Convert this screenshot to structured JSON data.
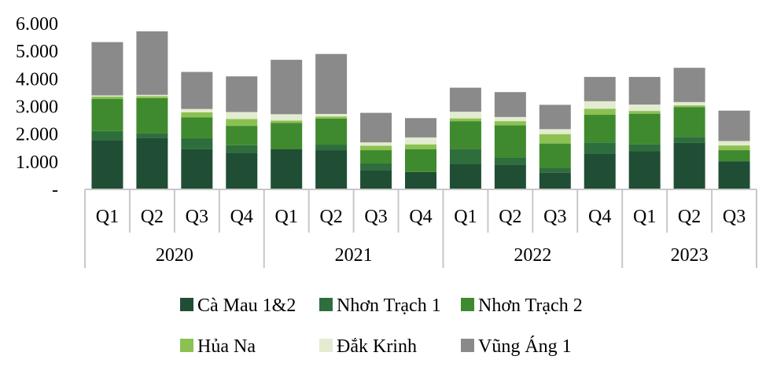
{
  "chart_data": {
    "type": "bar",
    "stacked": true,
    "title": "",
    "xlabel": "",
    "ylabel": "",
    "ylim": [
      0,
      6000
    ],
    "y_ticks": [
      0,
      1000,
      2000,
      3000,
      4000,
      5000,
      6000
    ],
    "y_tick_labels": [
      "-",
      "1.000",
      "2.000",
      "3.000",
      "4.000",
      "5.000",
      "6.000"
    ],
    "grid": false,
    "legend_position": "bottom",
    "categories": [
      "Q1",
      "Q2",
      "Q3",
      "Q4",
      "Q1",
      "Q2",
      "Q3",
      "Q4",
      "Q1",
      "Q2",
      "Q3",
      "Q4",
      "Q1",
      "Q2",
      "Q3"
    ],
    "year_groups": [
      {
        "label": "2020",
        "count": 4
      },
      {
        "label": "2021",
        "count": 4
      },
      {
        "label": "2022",
        "count": 4
      },
      {
        "label": "2023",
        "count": 3
      }
    ],
    "series": [
      {
        "name": "Cà Mau 1&2",
        "color": "#1f4e35",
        "values": [
          1780,
          1860,
          1460,
          1320,
          1450,
          1420,
          700,
          630,
          910,
          900,
          600,
          1280,
          1380,
          1680,
          1020
        ]
      },
      {
        "name": "Nhơn Trạch 1",
        "color": "#2e6e3c",
        "values": [
          330,
          180,
          390,
          280,
          0,
          200,
          250,
          0,
          560,
          250,
          180,
          420,
          260,
          220,
          0
        ]
      },
      {
        "name": "Nhơn Trạch 2",
        "color": "#3f8a2e",
        "values": [
          1170,
          1260,
          760,
          700,
          960,
          940,
          470,
          820,
          1000,
          1170,
          880,
          1000,
          1100,
          1080,
          400
        ]
      },
      {
        "name": "Hủa Na",
        "color": "#8cc152",
        "values": [
          80,
          70,
          180,
          250,
          80,
          80,
          160,
          180,
          100,
          150,
          340,
          220,
          100,
          60,
          170
        ]
      },
      {
        "name": "Đắk Krinh",
        "color": "#e3ecd0",
        "values": [
          40,
          50,
          120,
          250,
          230,
          90,
          120,
          250,
          240,
          150,
          180,
          270,
          230,
          120,
          160
        ]
      },
      {
        "name": "Vũng Áng 1",
        "color": "#8a8a8a",
        "values": [
          1930,
          2300,
          1340,
          1290,
          1970,
          2170,
          1070,
          700,
          870,
          900,
          880,
          880,
          1000,
          1240,
          1100
        ]
      }
    ]
  }
}
